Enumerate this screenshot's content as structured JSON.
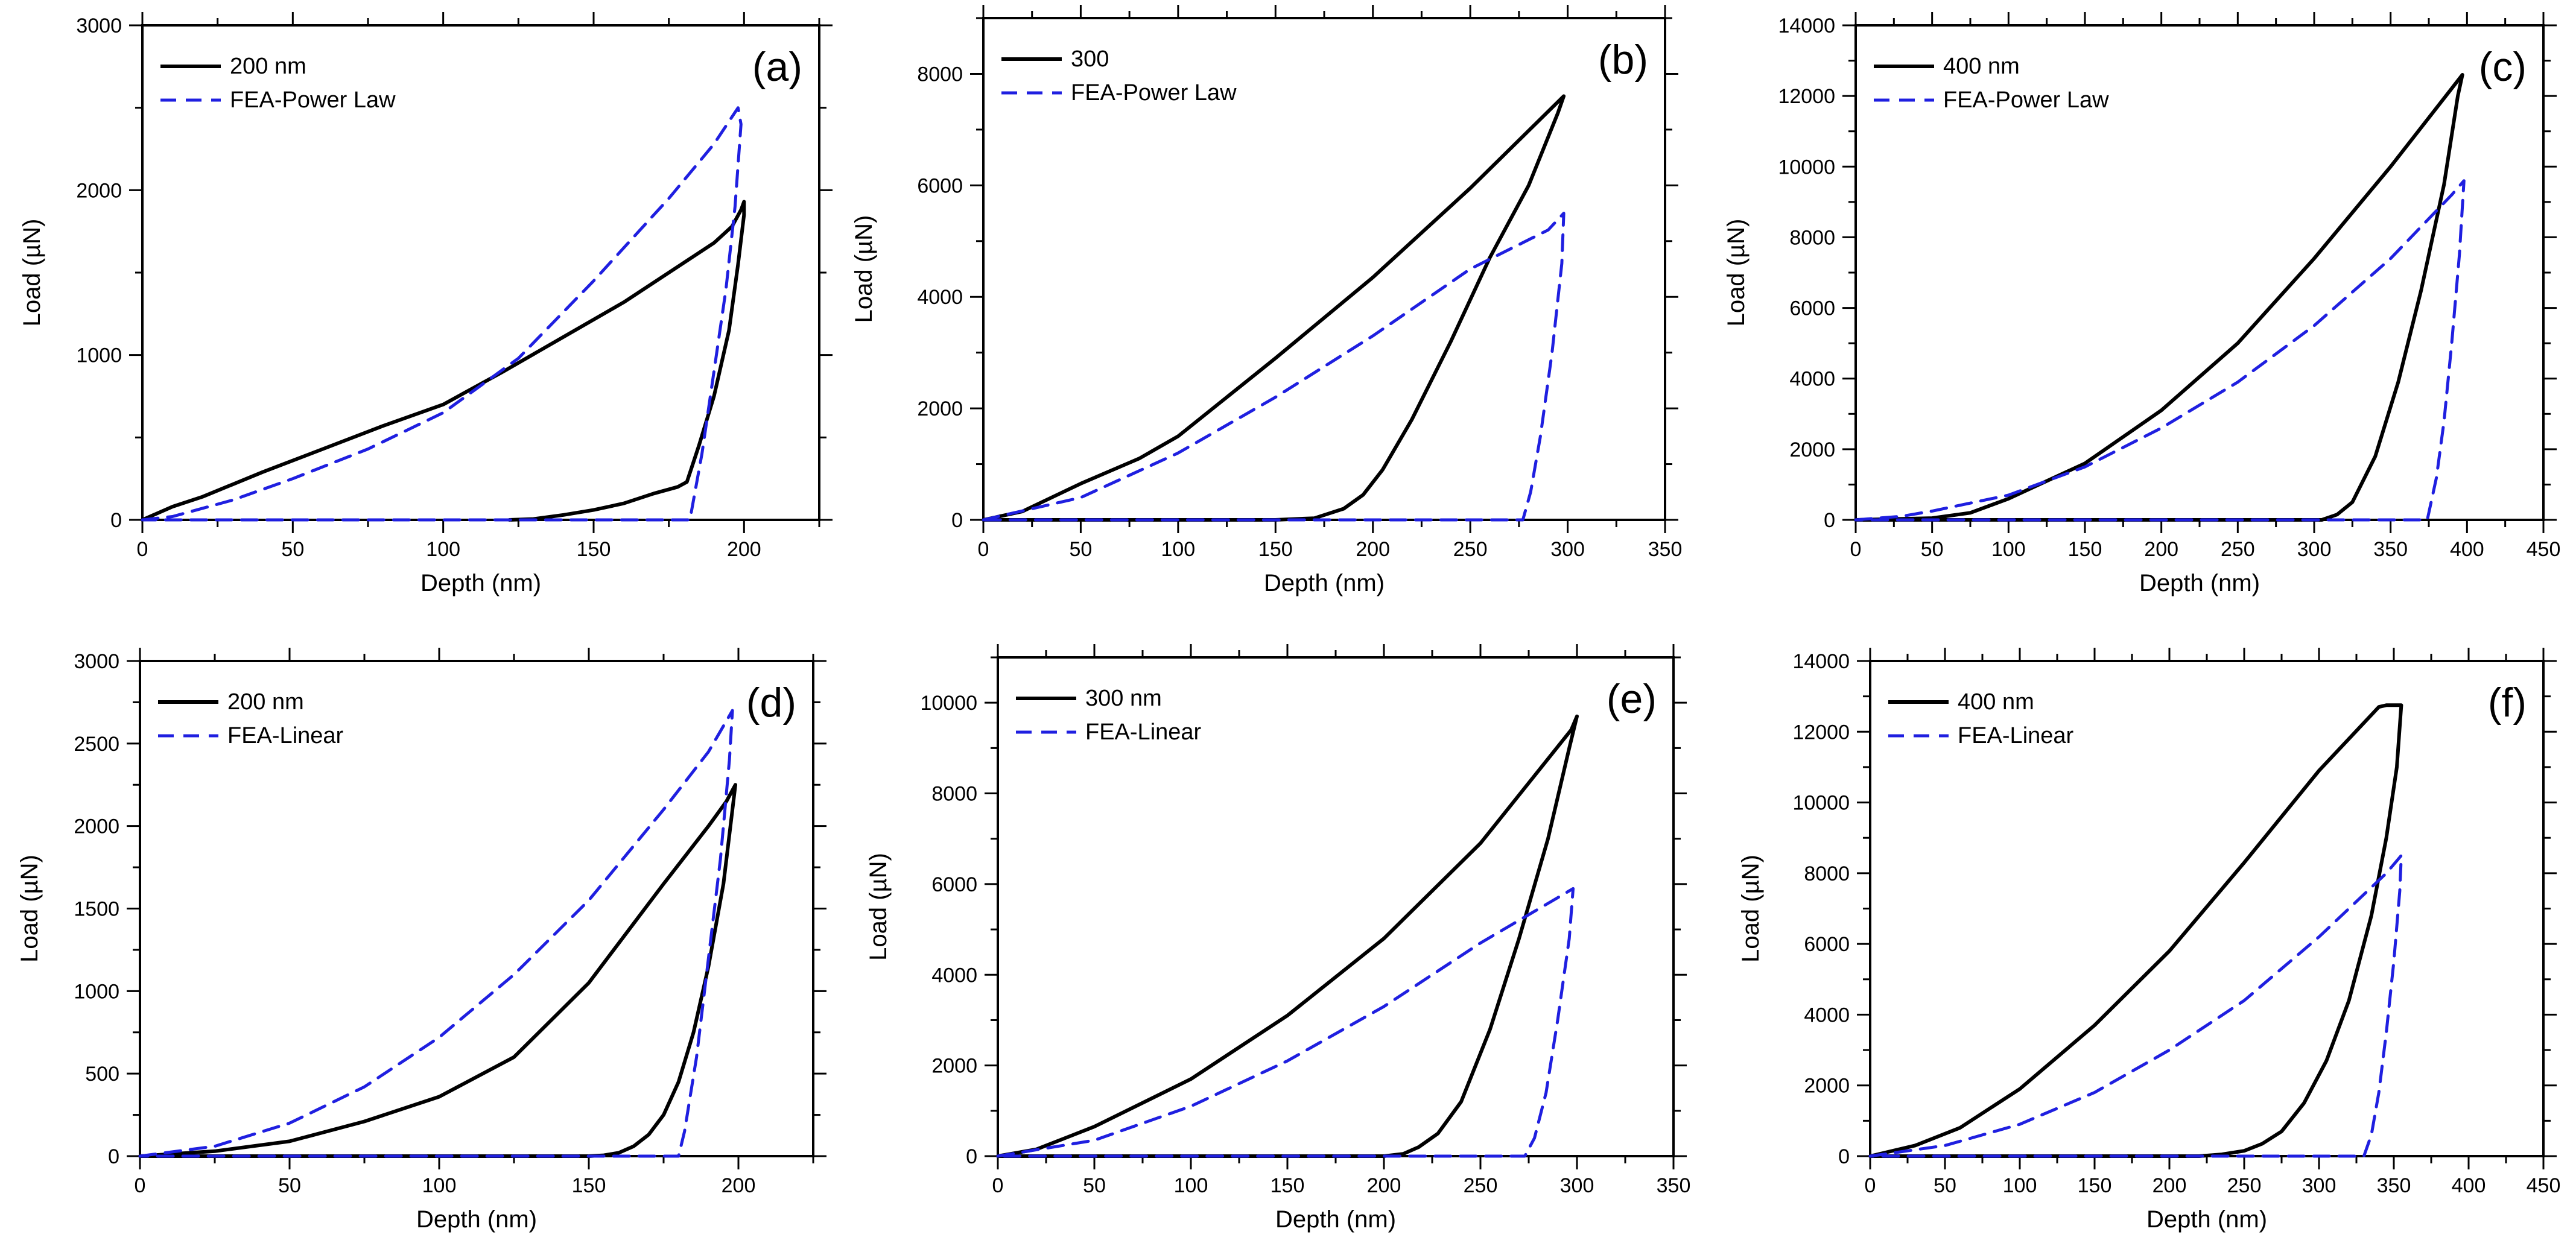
{
  "colors": {
    "experiment": "#000000",
    "fea": "#1f1fe0",
    "axis": "#000000"
  },
  "chart_data": [
    {
      "type": "line",
      "panel": "(a)",
      "xlabel": "Depth (nm)",
      "ylabel": "Load (µN)",
      "xlim": [
        0,
        225
      ],
      "ylim": [
        0,
        3000
      ],
      "xticks": [
        0,
        50,
        100,
        150,
        200
      ],
      "yticks": [
        0,
        1000,
        2000,
        3000
      ],
      "legend": [
        "200 nm",
        "FEA-Power Law"
      ],
      "series": [
        {
          "name": "200 nm",
          "style": "solid",
          "x": [
            0,
            10,
            20,
            40,
            60,
            80,
            100,
            120,
            140,
            160,
            180,
            190,
            196,
            199,
            200,
            200,
            198,
            195,
            190,
            185,
            181,
            178,
            170,
            160,
            150,
            140,
            130,
            122
          ],
          "y": [
            0,
            80,
            140,
            290,
            430,
            570,
            700,
            900,
            1110,
            1320,
            1560,
            1680,
            1780,
            1880,
            1930,
            1850,
            1550,
            1150,
            750,
            450,
            230,
            200,
            160,
            100,
            60,
            30,
            5,
            0
          ]
        },
        {
          "name": "FEA-Power Law",
          "style": "dashed",
          "x": [
            0,
            10,
            30,
            50,
            75,
            100,
            125,
            150,
            175,
            190,
            198,
            199,
            197,
            194,
            190,
            186,
            182,
            150,
            100,
            50,
            0
          ],
          "y": [
            0,
            20,
            120,
            250,
            430,
            650,
            980,
            1450,
            1950,
            2280,
            2500,
            2400,
            1900,
            1400,
            900,
            400,
            0,
            0,
            0,
            0,
            0
          ]
        }
      ]
    },
    {
      "type": "line",
      "panel": "(b)",
      "xlabel": "Depth (nm)",
      "ylabel": "Load (µN)",
      "xlim": [
        0,
        350
      ],
      "ylim": [
        0,
        9000
      ],
      "xticks": [
        0,
        50,
        100,
        150,
        200,
        250,
        300,
        350
      ],
      "yticks": [
        0,
        2000,
        4000,
        6000,
        8000
      ],
      "legend": [
        "300",
        "FEA-Power Law"
      ],
      "series": [
        {
          "name": "300",
          "style": "solid",
          "x": [
            0,
            20,
            50,
            80,
            100,
            150,
            200,
            250,
            298,
            295,
            280,
            260,
            240,
            220,
            205,
            195,
            185,
            170,
            150,
            100,
            0
          ],
          "y": [
            0,
            150,
            650,
            1100,
            1500,
            2900,
            4350,
            5950,
            7600,
            7300,
            6000,
            4700,
            3200,
            1800,
            900,
            450,
            200,
            30,
            0,
            0,
            0
          ]
        },
        {
          "name": "FEA-Power Law",
          "style": "dashed",
          "x": [
            0,
            50,
            100,
            150,
            200,
            250,
            290,
            298,
            297,
            292,
            286,
            281,
            277,
            200,
            100,
            0
          ],
          "y": [
            0,
            400,
            1200,
            2200,
            3300,
            4500,
            5200,
            5500,
            4600,
            3000,
            1500,
            500,
            0,
            0,
            0,
            0
          ]
        }
      ]
    },
    {
      "type": "line",
      "panel": "(c)",
      "xlabel": "Depth (nm)",
      "ylabel": "Load (µN)",
      "xlim": [
        0,
        450
      ],
      "ylim": [
        0,
        14000
      ],
      "xticks": [
        0,
        50,
        100,
        150,
        200,
        250,
        300,
        350,
        400,
        450
      ],
      "yticks": [
        0,
        2000,
        4000,
        6000,
        8000,
        10000,
        12000,
        14000
      ],
      "legend": [
        "400 nm",
        "FEA-Power Law"
      ],
      "series": [
        {
          "name": "400 nm",
          "style": "solid",
          "x": [
            0,
            50,
            75,
            100,
            150,
            200,
            250,
            300,
            350,
            397,
            394,
            385,
            370,
            355,
            340,
            325,
            315,
            305,
            250,
            150,
            0
          ],
          "y": [
            0,
            50,
            200,
            600,
            1600,
            3100,
            5000,
            7400,
            10000,
            12600,
            12000,
            9500,
            6500,
            3900,
            1800,
            500,
            150,
            0,
            0,
            0,
            0
          ]
        },
        {
          "name": "FEA-Power Law",
          "style": "dashed",
          "x": [
            0,
            30,
            50,
            100,
            150,
            200,
            250,
            300,
            350,
            390,
            398,
            395,
            390,
            385,
            380,
            374,
            300,
            200,
            100,
            0
          ],
          "y": [
            0,
            100,
            250,
            700,
            1500,
            2600,
            3900,
            5500,
            7400,
            9200,
            9600,
            7500,
            5000,
            2800,
            1200,
            0,
            0,
            0,
            0,
            0
          ]
        }
      ]
    },
    {
      "type": "line",
      "panel": "(d)",
      "xlabel": "Depth (nm)",
      "ylabel": "Load (µN)",
      "xlim": [
        0,
        225
      ],
      "ylim": [
        0,
        3000
      ],
      "xticks": [
        0,
        50,
        100,
        150,
        200
      ],
      "yticks": [
        0,
        500,
        1000,
        1500,
        2000,
        2500,
        3000
      ],
      "legend": [
        "200 nm",
        "FEA-Linear"
      ],
      "series": [
        {
          "name": "200 nm",
          "style": "solid",
          "x": [
            0,
            25,
            50,
            75,
            100,
            125,
            150,
            175,
            190,
            196,
            199,
            198,
            195,
            190,
            185,
            180,
            175,
            170,
            165,
            160,
            155,
            150,
            100,
            0
          ],
          "y": [
            0,
            30,
            90,
            210,
            360,
            600,
            1050,
            1650,
            2000,
            2150,
            2250,
            2100,
            1650,
            1150,
            750,
            450,
            250,
            130,
            60,
            20,
            5,
            0,
            0,
            0
          ]
        },
        {
          "name": "FEA-Linear",
          "style": "dashed",
          "x": [
            0,
            25,
            50,
            75,
            100,
            125,
            150,
            175,
            190,
            198,
            197,
            194,
            190,
            186,
            182,
            180,
            150,
            100,
            50,
            0
          ],
          "y": [
            0,
            60,
            200,
            420,
            720,
            1100,
            1550,
            2100,
            2450,
            2700,
            2400,
            1800,
            1200,
            600,
            150,
            0,
            0,
            0,
            0,
            0
          ]
        }
      ]
    },
    {
      "type": "line",
      "panel": "(e)",
      "xlabel": "Depth (nm)",
      "ylabel": "Load (µN)",
      "xlim": [
        0,
        350
      ],
      "ylim": [
        0,
        11000
      ],
      "xticks": [
        0,
        50,
        100,
        150,
        200,
        250,
        300,
        350
      ],
      "yticks": [
        0,
        2000,
        4000,
        6000,
        8000,
        10000
      ],
      "legend": [
        "300 nm",
        "FEA-Linear"
      ],
      "series": [
        {
          "name": "300 nm",
          "style": "solid",
          "x": [
            0,
            20,
            50,
            100,
            150,
            200,
            250,
            297,
            300,
            296,
            285,
            270,
            255,
            240,
            228,
            218,
            210,
            200,
            150,
            100,
            0
          ],
          "y": [
            0,
            150,
            650,
            1700,
            3100,
            4800,
            6900,
            9400,
            9700,
            9000,
            7000,
            4800,
            2800,
            1200,
            500,
            200,
            50,
            0,
            0,
            0,
            0
          ]
        },
        {
          "name": "FEA-Linear",
          "style": "dashed",
          "x": [
            0,
            50,
            100,
            150,
            200,
            250,
            290,
            298,
            296,
            290,
            284,
            278,
            273,
            200,
            100,
            0
          ],
          "y": [
            0,
            350,
            1100,
            2100,
            3300,
            4700,
            5700,
            5900,
            4800,
            3000,
            1400,
            400,
            0,
            0,
            0,
            0
          ]
        }
      ]
    },
    {
      "type": "line",
      "panel": "(f)",
      "xlabel": "Depth (nm)",
      "ylabel": "Load (µN)",
      "xlim": [
        0,
        450
      ],
      "ylim": [
        0,
        14000
      ],
      "xticks": [
        0,
        50,
        100,
        150,
        200,
        250,
        300,
        350,
        400,
        450
      ],
      "yticks": [
        0,
        2000,
        4000,
        6000,
        8000,
        10000,
        12000,
        14000
      ],
      "legend": [
        "400 nm",
        "FEA-Linear"
      ],
      "series": [
        {
          "name": "400 nm",
          "style": "solid",
          "x": [
            0,
            30,
            60,
            100,
            150,
            200,
            250,
            300,
            340,
            345,
            355,
            352,
            345,
            335,
            320,
            305,
            290,
            275,
            262,
            250,
            235,
            220,
            150,
            0
          ],
          "y": [
            0,
            300,
            800,
            1900,
            3700,
            5800,
            8300,
            10900,
            12700,
            12750,
            12750,
            11000,
            9000,
            6800,
            4400,
            2700,
            1500,
            700,
            350,
            150,
            50,
            0,
            0,
            0
          ]
        },
        {
          "name": "FEA-Linear",
          "style": "dashed",
          "x": [
            0,
            50,
            100,
            150,
            200,
            250,
            300,
            345,
            355,
            354,
            350,
            345,
            340,
            335,
            330,
            250,
            150,
            0
          ],
          "y": [
            0,
            300,
            900,
            1800,
            3000,
            4400,
            6200,
            8000,
            8500,
            7500,
            5500,
            3500,
            1800,
            600,
            0,
            0,
            0,
            0
          ]
        }
      ]
    }
  ]
}
